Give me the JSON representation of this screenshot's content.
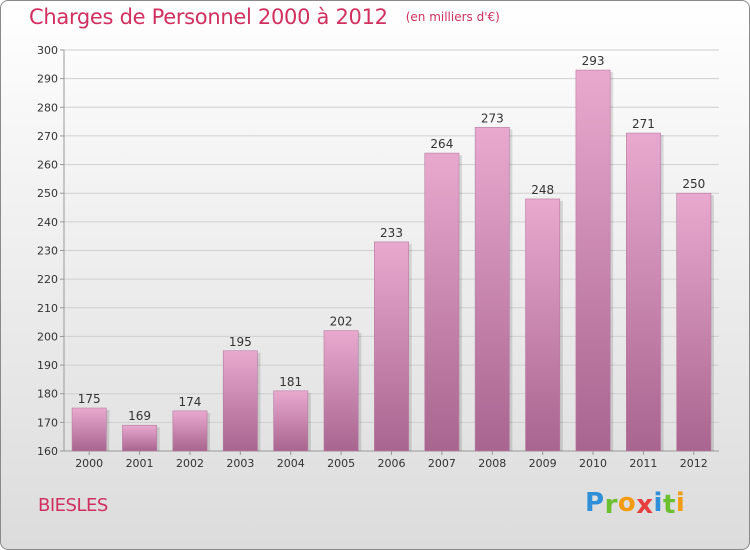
{
  "header": {
    "title": "Charges de Personnel 2000 à 2012",
    "subtitle": "(en milliers d'€)"
  },
  "footer": {
    "commune": "BIESLES",
    "logo_letters": [
      "P",
      "r",
      "o",
      "x",
      "i",
      "t",
      "i"
    ],
    "logo_colors": [
      "#2f8fd8",
      "#6cbf2f",
      "#f39c12",
      "#e83e3e",
      "#2f8fd8",
      "#6cbf2f",
      "#f39c12"
    ]
  },
  "chart_data": {
    "type": "bar",
    "title": "Charges de Personnel 2000 à 2012",
    "subtitle": "(en milliers d'€)",
    "categories": [
      "2000",
      "2001",
      "2002",
      "2003",
      "2004",
      "2005",
      "2006",
      "2007",
      "2008",
      "2009",
      "2010",
      "2011",
      "2012"
    ],
    "values": [
      175,
      169,
      174,
      195,
      181,
      202,
      233,
      264,
      273,
      248,
      293,
      271,
      250
    ],
    "ylim": [
      160,
      300
    ],
    "yticks": [
      160,
      170,
      180,
      190,
      200,
      210,
      220,
      230,
      240,
      250,
      260,
      270,
      280,
      290,
      300
    ],
    "grid": true,
    "legend": "none",
    "colors": {
      "bar_light": "#e9a9cf",
      "bar_dark": "#a8658f",
      "grid": "#cfcfcf",
      "axis": "#999999"
    }
  }
}
